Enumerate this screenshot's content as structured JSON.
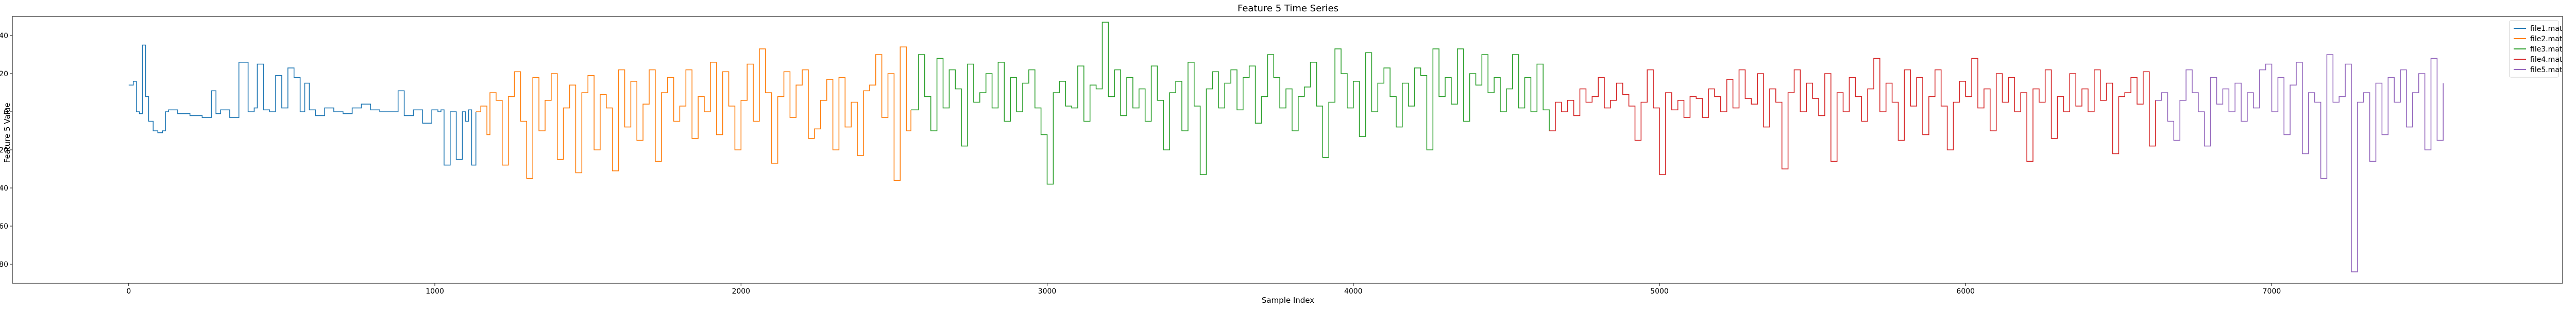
{
  "chart_data": {
    "type": "line",
    "title": "Feature 5 Time Series",
    "xlabel": "Sample Index",
    "ylabel": "Feature 5 Value",
    "xlim": [
      -380,
      7950
    ],
    "ylim": [
      -90,
      50
    ],
    "xticks": [
      0,
      1000,
      2000,
      3000,
      4000,
      5000,
      6000,
      7000
    ],
    "yticks": [
      -80,
      -60,
      -40,
      -20,
      0,
      20,
      40
    ],
    "grid": false,
    "legend_position": "top-right",
    "series": [
      {
        "name": "file1.mat",
        "color": "#1f77b4",
        "x": [
          0,
          15,
          25,
          35,
          45,
          55,
          65,
          80,
          95,
          110,
          120,
          130,
          160,
          200,
          240,
          270,
          285,
          300,
          330,
          360,
          390,
          410,
          420,
          440,
          460,
          480,
          500,
          520,
          540,
          560,
          575,
          590,
          610,
          640,
          670,
          700,
          730,
          760,
          790,
          820,
          860,
          880,
          900,
          930,
          960,
          990,
          1010,
          1020,
          1030,
          1050,
          1070,
          1090,
          1100,
          1110,
          1120,
          1134
        ],
        "values": [
          14,
          16,
          0,
          -1,
          35,
          8,
          -5,
          -10,
          -11,
          -10,
          0,
          1,
          -1,
          -2,
          -3,
          11,
          -1,
          1,
          -3,
          26,
          0,
          2,
          25,
          1,
          0,
          19,
          2,
          23,
          18,
          0,
          15,
          1,
          -2,
          2,
          0,
          -1,
          2,
          4,
          1,
          0,
          0,
          11,
          -2,
          1,
          -6,
          1,
          0,
          1,
          -28,
          0,
          -25,
          0,
          -5,
          1,
          -28,
          0
        ]
      },
      {
        "name": "file2.mat",
        "color": "#ff7f0e",
        "x": [
          1134,
          1150,
          1170,
          1180,
          1200,
          1220,
          1240,
          1260,
          1280,
          1300,
          1320,
          1340,
          1360,
          1380,
          1400,
          1420,
          1440,
          1460,
          1480,
          1500,
          1520,
          1540,
          1560,
          1580,
          1600,
          1620,
          1640,
          1660,
          1680,
          1700,
          1720,
          1740,
          1760,
          1780,
          1800,
          1820,
          1840,
          1860,
          1880,
          1900,
          1920,
          1940,
          1960,
          1980,
          2000,
          2020,
          2040,
          2060,
          2080,
          2100,
          2120,
          2140,
          2160,
          2180,
          2200,
          2220,
          2240,
          2260,
          2280,
          2300,
          2320,
          2340,
          2360,
          2380,
          2400,
          2420,
          2440,
          2460,
          2480,
          2500,
          2520,
          2540,
          2555
        ],
        "values": [
          0,
          3,
          -12,
          10,
          6,
          -28,
          8,
          21,
          -5,
          -35,
          18,
          -10,
          6,
          20,
          -25,
          2,
          14,
          -32,
          10,
          19,
          -20,
          9,
          2,
          -31,
          22,
          -8,
          16,
          -15,
          4,
          22,
          -26,
          10,
          18,
          -5,
          3,
          22,
          -14,
          8,
          0,
          26,
          -12,
          21,
          3,
          -20,
          6,
          25,
          -5,
          33,
          10,
          -27,
          8,
          21,
          -3,
          14,
          22,
          -14,
          -9,
          6,
          17,
          -20,
          18,
          -8,
          5,
          -23,
          11,
          14,
          30,
          -3,
          20,
          -36,
          34,
          -10,
          1
        ]
      },
      {
        "name": "file3.mat",
        "color": "#2ca02c",
        "x": [
          2555,
          2580,
          2600,
          2620,
          2640,
          2660,
          2680,
          2700,
          2720,
          2740,
          2760,
          2780,
          2800,
          2820,
          2840,
          2860,
          2880,
          2900,
          2920,
          2940,
          2960,
          2980,
          3000,
          3020,
          3040,
          3060,
          3080,
          3100,
          3120,
          3140,
          3160,
          3180,
          3200,
          3220,
          3240,
          3260,
          3280,
          3300,
          3320,
          3340,
          3360,
          3380,
          3400,
          3420,
          3440,
          3460,
          3480,
          3500,
          3520,
          3540,
          3560,
          3580,
          3600,
          3620,
          3640,
          3660,
          3680,
          3700,
          3720,
          3740,
          3760,
          3780,
          3800,
          3820,
          3840,
          3860,
          3880,
          3900,
          3920,
          3940,
          3960,
          3980,
          4000,
          4020,
          4040,
          4060,
          4080,
          4100,
          4120,
          4140,
          4160,
          4180,
          4200,
          4220,
          4240,
          4260,
          4280,
          4300,
          4320,
          4340,
          4360,
          4380,
          4400,
          4420,
          4440,
          4460,
          4480,
          4500,
          4520,
          4540,
          4560,
          4580,
          4600,
          4620,
          4640
        ],
        "values": [
          1,
          30,
          8,
          -10,
          28,
          2,
          22,
          12,
          -18,
          25,
          5,
          10,
          20,
          2,
          26,
          -5,
          18,
          0,
          15,
          22,
          2,
          -12,
          -38,
          10,
          16,
          3,
          2,
          24,
          -5,
          14,
          12,
          47,
          8,
          22,
          -2,
          18,
          2,
          12,
          -5,
          24,
          6,
          -20,
          10,
          16,
          -10,
          26,
          3,
          -33,
          12,
          21,
          2,
          15,
          22,
          1,
          18,
          24,
          -6,
          8,
          30,
          18,
          2,
          12,
          -10,
          8,
          13,
          26,
          3,
          -24,
          5,
          33,
          20,
          2,
          16,
          -13,
          31,
          0,
          15,
          23,
          8,
          -8,
          15,
          3,
          23,
          19,
          -20,
          33,
          8,
          18,
          4,
          33,
          -5,
          20,
          14,
          30,
          10,
          18,
          0,
          12,
          30,
          2,
          18,
          0,
          25,
          1,
          -10
        ]
      },
      {
        "name": "file4.mat",
        "color": "#d62728",
        "x": [
          4640,
          4660,
          4680,
          4700,
          4720,
          4740,
          4760,
          4780,
          4800,
          4820,
          4840,
          4860,
          4880,
          4900,
          4920,
          4940,
          4960,
          4980,
          5000,
          5020,
          5040,
          5060,
          5080,
          5100,
          5120,
          5140,
          5160,
          5180,
          5200,
          5220,
          5240,
          5260,
          5280,
          5300,
          5320,
          5340,
          5360,
          5380,
          5400,
          5420,
          5440,
          5460,
          5480,
          5500,
          5520,
          5540,
          5560,
          5580,
          5600,
          5620,
          5640,
          5660,
          5680,
          5700,
          5720,
          5740,
          5760,
          5780,
          5800,
          5820,
          5840,
          5860,
          5880,
          5900,
          5920,
          5940,
          5960,
          5980,
          6000,
          6020,
          6040,
          6060,
          6080,
          6100,
          6120,
          6140,
          6160,
          6180,
          6200,
          6220,
          6240,
          6260,
          6280,
          6300,
          6320,
          6340,
          6360,
          6380,
          6400,
          6420,
          6440,
          6460,
          6480,
          6500,
          6520,
          6540,
          6560,
          6580,
          6600,
          6620
        ],
        "values": [
          -10,
          5,
          0,
          6,
          -2,
          12,
          5,
          8,
          18,
          2,
          6,
          15,
          9,
          3,
          -15,
          5,
          22,
          2,
          -33,
          10,
          1,
          6,
          -3,
          8,
          7,
          -3,
          12,
          8,
          0,
          17,
          2,
          22,
          7,
          4,
          20,
          -8,
          12,
          5,
          -30,
          10,
          22,
          0,
          15,
          7,
          -2,
          20,
          -26,
          10,
          0,
          18,
          8,
          -5,
          12,
          28,
          0,
          15,
          5,
          -15,
          22,
          3,
          18,
          -12,
          8,
          22,
          3,
          -20,
          5,
          16,
          8,
          28,
          2,
          12,
          -10,
          20,
          5,
          18,
          0,
          10,
          -26,
          12,
          5,
          22,
          -14,
          8,
          0,
          20,
          3,
          12,
          0,
          22,
          6,
          15,
          -22,
          8,
          10,
          18,
          4,
          21,
          -18,
          6
        ]
      },
      {
        "name": "file5.mat",
        "color": "#9467bd",
        "x": [
          6620,
          6640,
          6660,
          6680,
          6700,
          6720,
          6740,
          6760,
          6780,
          6800,
          6820,
          6840,
          6860,
          6880,
          6900,
          6920,
          6940,
          6960,
          6980,
          7000,
          7020,
          7040,
          7060,
          7080,
          7100,
          7120,
          7140,
          7160,
          7180,
          7200,
          7220,
          7240,
          7260,
          7280,
          7300,
          7320,
          7340,
          7360,
          7380,
          7400,
          7420,
          7440,
          7460,
          7480,
          7500,
          7520,
          7540,
          7560
        ],
        "values": [
          6,
          10,
          -5,
          -15,
          6,
          22,
          10,
          0,
          -18,
          18,
          4,
          12,
          0,
          15,
          -5,
          10,
          2,
          22,
          25,
          0,
          18,
          -12,
          14,
          26,
          -22,
          10,
          5,
          -35,
          30,
          5,
          8,
          25,
          -84,
          5,
          10,
          -26,
          15,
          -12,
          18,
          5,
          22,
          -8,
          10,
          20,
          -20,
          28,
          -15,
          15
        ]
      }
    ]
  }
}
